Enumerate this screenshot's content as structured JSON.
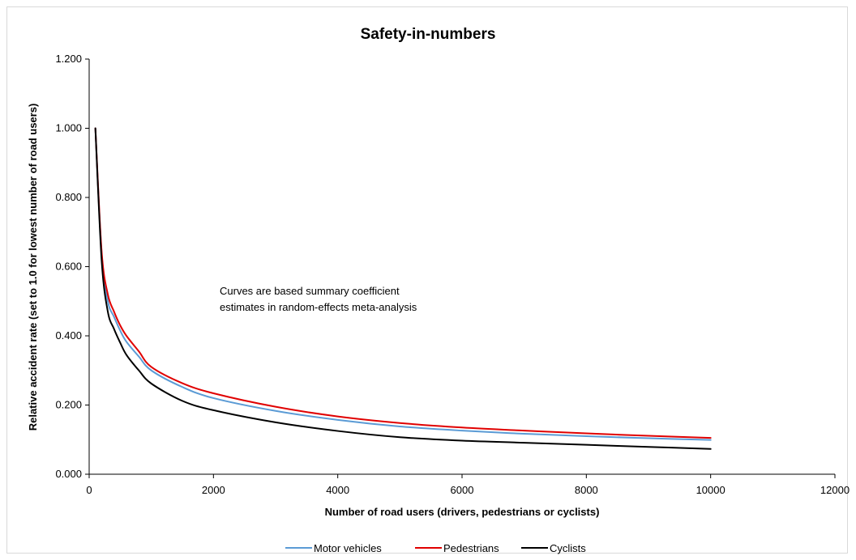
{
  "chart_data": {
    "type": "line",
    "title": "Safety-in-numbers",
    "xlabel": "Number of road users (drivers, pedestrians or cyclists)",
    "ylabel": "Relative accident rate (set to 1.0 for lowest number of road users)",
    "xlim": [
      0,
      12000
    ],
    "ylim": [
      0,
      1.2
    ],
    "x_ticks": [
      "0",
      "2000",
      "4000",
      "6000",
      "8000",
      "10000",
      "12000"
    ],
    "y_ticks": [
      "0.000",
      "0.200",
      "0.400",
      "0.600",
      "0.800",
      "1.000",
      "1.200"
    ],
    "grid": false,
    "legend_position": "bottom",
    "annotation": "Curves are based summary coefficient estimates in random-effects meta-analysis",
    "annotation_lines": [
      "Curves are based summary coefficient",
      "estimates in random-effects meta-analysis"
    ],
    "x": [
      100,
      200,
      300,
      400,
      500,
      600,
      800,
      1000,
      1500,
      2000,
      3000,
      4000,
      5000,
      6000,
      7000,
      8000,
      9000,
      10000
    ],
    "series": [
      {
        "name": "Motor vehicles",
        "color": "#5B9BD5",
        "values": [
          1.0,
          0.64,
          0.5,
          0.455,
          0.415,
          0.383,
          0.34,
          0.3,
          0.252,
          0.22,
          0.183,
          0.157,
          0.138,
          0.126,
          0.117,
          0.11,
          0.104,
          0.099
        ]
      },
      {
        "name": "Pedestrians",
        "color": "#E00000",
        "values": [
          1.0,
          0.645,
          0.52,
          0.47,
          0.43,
          0.4,
          0.355,
          0.31,
          0.263,
          0.234,
          0.195,
          0.167,
          0.148,
          0.135,
          0.126,
          0.118,
          0.111,
          0.105
        ]
      },
      {
        "name": "Cyclists",
        "color": "#000000",
        "values": [
          1.0,
          0.62,
          0.47,
          0.42,
          0.38,
          0.345,
          0.3,
          0.262,
          0.212,
          0.185,
          0.15,
          0.125,
          0.107,
          0.097,
          0.091,
          0.085,
          0.079,
          0.073
        ]
      }
    ]
  }
}
